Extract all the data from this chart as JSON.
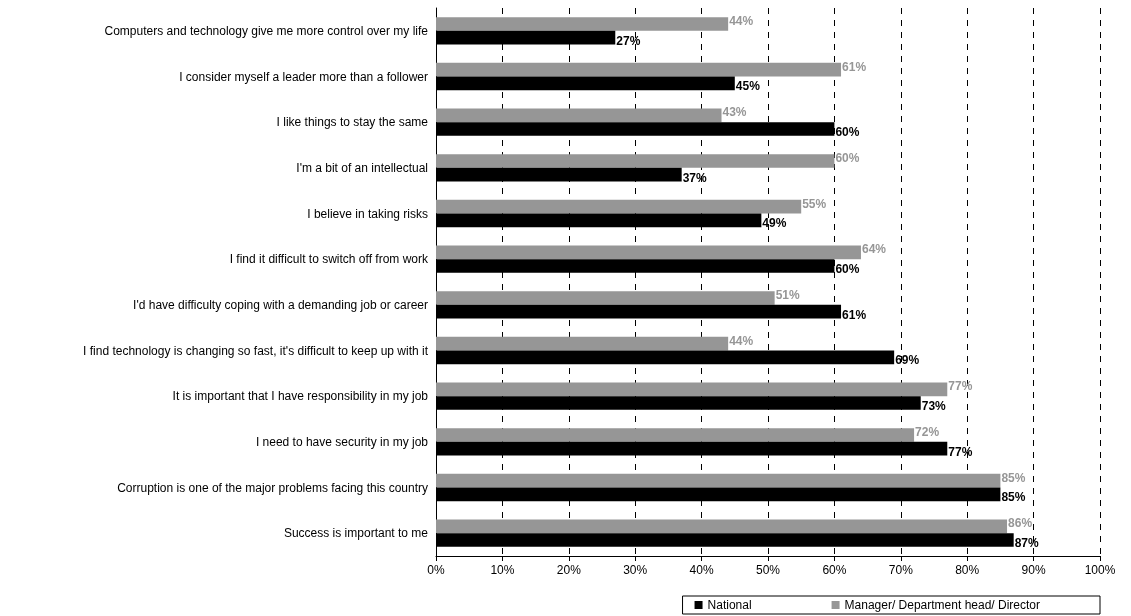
{
  "chart_data": {
    "type": "bar",
    "orientation": "horizontal",
    "categories": [
      "Computers and technology give me more control over my life",
      "I consider myself a leader more than a follower",
      "I like things to stay the same",
      "I'm a bit of an intellectual",
      "I believe in taking risks",
      "I find it difficult to switch off from work",
      "I'd have difficulty coping with a demanding job or career",
      "I find technology is changing so fast, it's difficult to keep up with it",
      "It is important that I have responsibility in my job",
      "I need to have security in my job",
      "Corruption is one of the major problems facing this country",
      "Success is important to me"
    ],
    "series": [
      {
        "name": "National",
        "color": "#000000",
        "values": [
          27,
          45,
          60,
          37,
          49,
          60,
          61,
          69,
          73,
          77,
          85,
          87
        ],
        "value_labels": [
          "27%",
          "45%",
          "60%",
          "37%",
          "49%",
          "60%",
          "61%",
          "69%",
          "73%",
          "77%",
          "85%",
          "87%"
        ]
      },
      {
        "name": "Manager/ Department head/ Director",
        "color": "#969696",
        "values": [
          44,
          61,
          43,
          60,
          55,
          64,
          51,
          44,
          77,
          72,
          85,
          86
        ],
        "value_labels": [
          "44%",
          "61%",
          "43%",
          "60%",
          "55%",
          "64%",
          "51%",
          "44%",
          "77%",
          "72%",
          "85%",
          "86%"
        ]
      }
    ],
    "xlim": [
      0,
      100
    ],
    "xticks": [
      {
        "value": 0,
        "label": "0%"
      },
      {
        "value": 10,
        "label": "10%"
      },
      {
        "value": 20,
        "label": "20%"
      },
      {
        "value": 30,
        "label": "30%"
      },
      {
        "value": 40,
        "label": "40%"
      },
      {
        "value": 50,
        "label": "50%"
      },
      {
        "value": 60,
        "label": "60%"
      },
      {
        "value": 70,
        "label": "70%"
      },
      {
        "value": 80,
        "label": "80%"
      },
      {
        "value": 90,
        "label": "90%"
      },
      {
        "value": 100,
        "label": "100%"
      }
    ],
    "grid": "x",
    "legend": "bottom right"
  }
}
